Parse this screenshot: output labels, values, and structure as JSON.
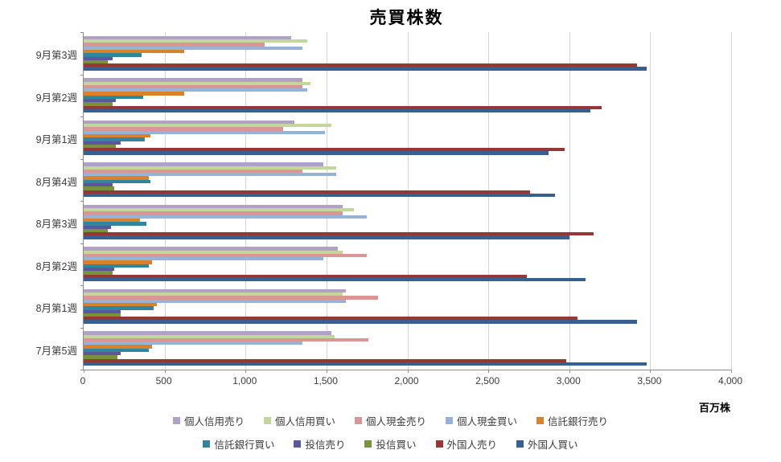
{
  "chart_data": {
    "type": "bar",
    "orientation": "horizontal",
    "title": "売買株数",
    "xlabel": "百万株",
    "xlim": [
      0,
      4000
    ],
    "xticks": [
      0,
      500,
      1000,
      1500,
      2000,
      2500,
      3000,
      3500,
      4000
    ],
    "grid": true,
    "legend_position": "bottom",
    "categories": [
      "9月第3週",
      "9月第2週",
      "9月第1週",
      "8月第4週",
      "8月第3週",
      "8月第2週",
      "8月第1週",
      "7月第5週"
    ],
    "series": [
      {
        "name": "個人信用売り",
        "color": "#B2A1C7",
        "values": [
          1280,
          1350,
          1300,
          1480,
          1600,
          1570,
          1620,
          1530
        ]
      },
      {
        "name": "個人信用買い",
        "color": "#C3D69B",
        "values": [
          1380,
          1400,
          1530,
          1560,
          1670,
          1600,
          1600,
          1550
        ]
      },
      {
        "name": "個人現金売り",
        "color": "#D99694",
        "values": [
          1120,
          1350,
          1230,
          1350,
          1600,
          1750,
          1820,
          1760
        ]
      },
      {
        "name": "個人現金買い",
        "color": "#95B3D7",
        "values": [
          1350,
          1380,
          1490,
          1560,
          1750,
          1480,
          1620,
          1350
        ]
      },
      {
        "name": "信託銀行売り",
        "color": "#D9822B",
        "values": [
          620,
          620,
          410,
          400,
          350,
          420,
          450,
          420
        ]
      },
      {
        "name": "信託銀行買い",
        "color": "#31859C",
        "values": [
          360,
          370,
          380,
          410,
          390,
          400,
          430,
          400
        ]
      },
      {
        "name": "投信売り",
        "color": "#5B569E",
        "values": [
          180,
          200,
          230,
          180,
          170,
          190,
          230,
          230
        ]
      },
      {
        "name": "投信買い",
        "color": "#77933C",
        "values": [
          150,
          180,
          200,
          190,
          150,
          180,
          230,
          210
        ]
      },
      {
        "name": "外国人売り",
        "color": "#953735",
        "values": [
          3420,
          3200,
          2970,
          2760,
          3150,
          2740,
          3050,
          2980
        ]
      },
      {
        "name": "外国人買い",
        "color": "#366092",
        "values": [
          3480,
          3130,
          2870,
          2910,
          3000,
          3100,
          3420,
          3480
        ]
      }
    ]
  }
}
